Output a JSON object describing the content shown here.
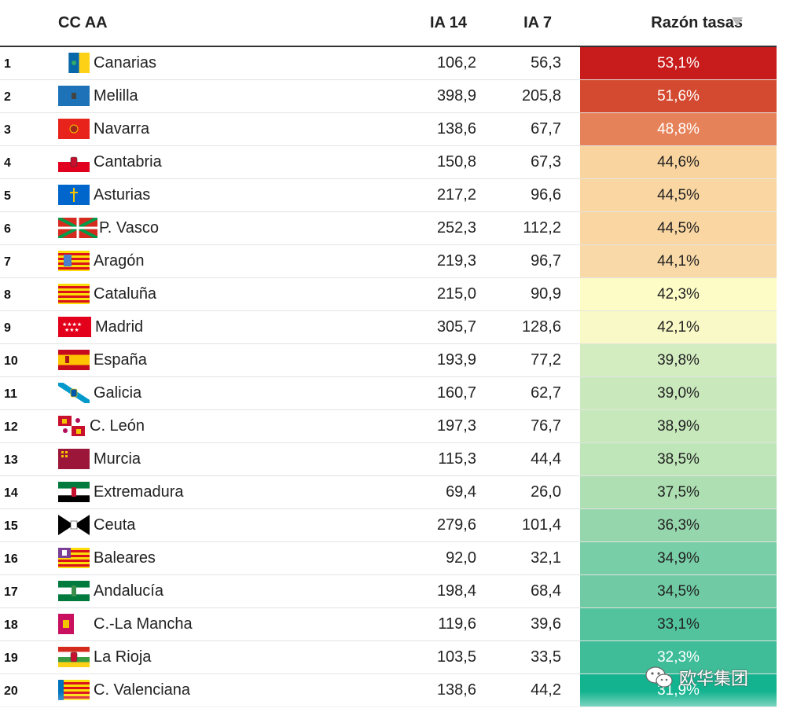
{
  "header": {
    "ccaa": "CC AA",
    "ia14": "IA 14",
    "ia7": "IA 7",
    "razon": "Razón tasas"
  },
  "rows": [
    {
      "rank": "1",
      "name": "Canarias",
      "ia14": "106,2",
      "ia7": "56,3",
      "ratio": "53,1%",
      "color": "#c81c1c",
      "text": "#ffffff",
      "flag": "canarias"
    },
    {
      "rank": "2",
      "name": "Melilla",
      "ia14": "398,9",
      "ia7": "205,8",
      "ratio": "51,6%",
      "color": "#d44a30",
      "text": "#ffffff",
      "flag": "melilla"
    },
    {
      "rank": "3",
      "name": "Navarra",
      "ia14": "138,6",
      "ia7": "67,7",
      "ratio": "48,8%",
      "color": "#e6825a",
      "text": "#ffffff",
      "flag": "navarra"
    },
    {
      "rank": "4",
      "name": "Cantabria",
      "ia14": "150,8",
      "ia7": "67,3",
      "ratio": "44,6%",
      "color": "#f9d49f",
      "text": "#222222",
      "flag": "cantabria"
    },
    {
      "rank": "5",
      "name": "Asturias",
      "ia14": "217,2",
      "ia7": "96,6",
      "ratio": "44,5%",
      "color": "#f9d6a2",
      "text": "#222222",
      "flag": "asturias"
    },
    {
      "rank": "6",
      "name": "P. Vasco",
      "ia14": "252,3",
      "ia7": "112,2",
      "ratio": "44,5%",
      "color": "#f9d6a2",
      "text": "#222222",
      "flag": "vasco"
    },
    {
      "rank": "7",
      "name": "Aragón",
      "ia14": "219,3",
      "ia7": "96,7",
      "ratio": "44,1%",
      "color": "#f9d9a7",
      "text": "#222222",
      "flag": "aragon"
    },
    {
      "rank": "8",
      "name": "Cataluña",
      "ia14": "215,0",
      "ia7": "90,9",
      "ratio": "42,3%",
      "color": "#fdfcc7",
      "text": "#222222",
      "flag": "cataluna"
    },
    {
      "rank": "9",
      "name": "Madrid",
      "ia14": "305,7",
      "ia7": "128,6",
      "ratio": "42,1%",
      "color": "#f8f9c6",
      "text": "#222222",
      "flag": "madrid"
    },
    {
      "rank": "10",
      "name": "España",
      "ia14": "193,9",
      "ia7": "77,2",
      "ratio": "39,8%",
      "color": "#d3edc1",
      "text": "#222222",
      "flag": "espana"
    },
    {
      "rank": "11",
      "name": "Galicia",
      "ia14": "160,7",
      "ia7": "62,7",
      "ratio": "39,0%",
      "color": "#c9e9bd",
      "text": "#222222",
      "flag": "galicia"
    },
    {
      "rank": "12",
      "name": "C. León",
      "ia14": "197,3",
      "ia7": "76,7",
      "ratio": "38,9%",
      "color": "#c6e8bb",
      "text": "#222222",
      "flag": "cleon"
    },
    {
      "rank": "13",
      "name": "Murcia",
      "ia14": "115,3",
      "ia7": "44,4",
      "ratio": "38,5%",
      "color": "#bfe6b8",
      "text": "#222222",
      "flag": "murcia"
    },
    {
      "rank": "14",
      "name": "Extremadura",
      "ia14": "69,4",
      "ia7": "26,0",
      "ratio": "37,5%",
      "color": "#addfb2",
      "text": "#222222",
      "flag": "extremadura"
    },
    {
      "rank": "15",
      "name": "Ceuta",
      "ia14": "279,6",
      "ia7": "101,4",
      "ratio": "36,3%",
      "color": "#95d6ac",
      "text": "#222222",
      "flag": "ceuta"
    },
    {
      "rank": "16",
      "name": "Baleares",
      "ia14": "92,0",
      "ia7": "32,1",
      "ratio": "34,9%",
      "color": "#78cea6",
      "text": "#222222",
      "flag": "baleares"
    },
    {
      "rank": "17",
      "name": "Andalucía",
      "ia14": "198,4",
      "ia7": "68,4",
      "ratio": "34,5%",
      "color": "#70cba4",
      "text": "#222222",
      "flag": "andalucia"
    },
    {
      "rank": "18",
      "name": "C.-La Mancha",
      "ia14": "119,6",
      "ia7": "39,6",
      "ratio": "33,1%",
      "color": "#52c39d",
      "text": "#222222",
      "flag": "clamancha"
    },
    {
      "rank": "19",
      "name": "La Rioja",
      "ia14": "103,5",
      "ia7": "33,5",
      "ratio": "32,3%",
      "color": "#3ebd98",
      "text": "#ffffff",
      "flag": "larioja"
    },
    {
      "rank": "20",
      "name": "C. Valenciana",
      "ia14": "138,6",
      "ia7": "44,2",
      "ratio": "31,9%",
      "color": "#14b38f",
      "text": "#ffffff",
      "flag": "valenciana"
    }
  ],
  "watermark": {
    "text": "欧华集团",
    "icon": "wechat-icon"
  }
}
